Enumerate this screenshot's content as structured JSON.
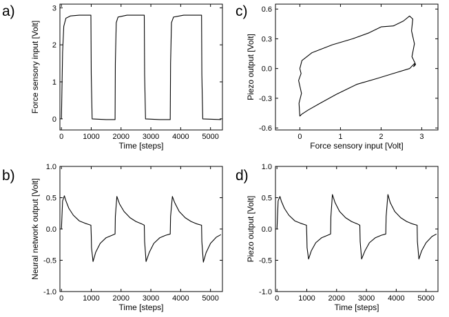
{
  "chart_data": [
    {
      "id": "a",
      "panel_label": "a)",
      "type": "line",
      "xlabel": "Time [steps]",
      "ylabel": "Force sensory input [Volt]",
      "xlim": [
        -50,
        5400
      ],
      "ylim": [
        -0.3,
        3.1
      ],
      "xticks": [
        0,
        1000,
        2000,
        3000,
        4000,
        5000
      ],
      "yticks": [
        0,
        1,
        2,
        3
      ],
      "ytick_labels": [
        "0",
        "1",
        "2",
        "3"
      ],
      "x": [
        0,
        40,
        80,
        150,
        300,
        600,
        990,
        1000,
        1030,
        1500,
        1800,
        1810,
        1840,
        1900,
        2200,
        2780,
        2790,
        2820,
        3300,
        3650,
        3660,
        3690,
        3760,
        4100,
        4700,
        4710,
        4740,
        5350
      ],
      "values": [
        0.0,
        1.8,
        2.5,
        2.72,
        2.78,
        2.8,
        2.8,
        1.2,
        0.0,
        -0.02,
        -0.02,
        1.5,
        2.6,
        2.75,
        2.8,
        2.8,
        1.2,
        0.0,
        -0.02,
        -0.02,
        1.5,
        2.6,
        2.75,
        2.8,
        2.8,
        1.2,
        0.0,
        -0.02
      ]
    },
    {
      "id": "b",
      "panel_label": "b)",
      "type": "line",
      "xlabel": "Time [steps]",
      "ylabel": "Neural network output [Volt]",
      "xlim": [
        -50,
        5400
      ],
      "ylim": [
        -1.0,
        1.0
      ],
      "xticks": [
        0,
        1000,
        2000,
        3000,
        4000,
        5000
      ],
      "yticks": [
        -1.0,
        -0.5,
        0.0,
        0.5,
        1.0
      ],
      "ytick_labels": [
        "-1.0",
        "-0.5",
        "0.0",
        "0.5",
        "1.0"
      ],
      "x": [
        0,
        40,
        100,
        150,
        250,
        400,
        600,
        800,
        990,
        1000,
        1010,
        1060,
        1150,
        1300,
        1500,
        1700,
        1800,
        1810,
        1860,
        1950,
        2100,
        2300,
        2500,
        2700,
        2780,
        2790,
        2840,
        2950,
        3100,
        3300,
        3500,
        3650,
        3660,
        3720,
        3800,
        3950,
        4150,
        4350,
        4550,
        4700,
        4710,
        4760,
        4850,
        5000,
        5200,
        5350
      ],
      "values": [
        0.0,
        0.45,
        0.53,
        0.45,
        0.33,
        0.22,
        0.13,
        0.09,
        0.06,
        -0.1,
        -0.3,
        -0.52,
        -0.37,
        -0.23,
        -0.14,
        -0.1,
        -0.08,
        0.2,
        0.52,
        0.4,
        0.28,
        0.18,
        0.12,
        0.08,
        0.06,
        -0.2,
        -0.52,
        -0.37,
        -0.23,
        -0.14,
        -0.1,
        -0.08,
        0.2,
        0.52,
        0.42,
        0.28,
        0.18,
        0.12,
        0.08,
        0.06,
        -0.2,
        -0.53,
        -0.38,
        -0.23,
        -0.13,
        -0.09
      ]
    },
    {
      "id": "c",
      "panel_label": "c)",
      "type": "line",
      "xlabel": "Force sensory input [Volt]",
      "ylabel": "Piezo output [Volt]",
      "xlim": [
        -0.6,
        3.4
      ],
      "ylim": [
        -0.62,
        0.65
      ],
      "xticks": [
        0,
        1,
        2,
        3
      ],
      "xtick_labels": [
        "0",
        "1",
        "2",
        "3"
      ],
      "yticks": [
        -0.6,
        -0.3,
        0.0,
        0.3,
        0.6
      ],
      "ytick_labels": [
        "-0.6",
        "-0.3",
        "0.0",
        "0.3",
        "0.6"
      ],
      "x": [
        0.0,
        0.05,
        0.3,
        0.8,
        1.3,
        1.7,
        2.0,
        2.3,
        2.55,
        2.7,
        2.78,
        2.75,
        2.82,
        2.76,
        2.84,
        2.8,
        2.85,
        2.82,
        2.7,
        2.3,
        1.9,
        1.4,
        0.9,
        0.5,
        0.2,
        0.05,
        0.0,
        -0.02,
        0.04,
        -0.03,
        0.03,
        0.0
      ],
      "values": [
        0.0,
        0.08,
        0.16,
        0.24,
        0.3,
        0.36,
        0.42,
        0.43,
        0.48,
        0.53,
        0.5,
        0.38,
        0.25,
        0.12,
        0.05,
        0.02,
        0.04,
        0.05,
        0.0,
        -0.05,
        -0.1,
        -0.16,
        -0.26,
        -0.35,
        -0.42,
        -0.46,
        -0.48,
        -0.35,
        -0.25,
        -0.12,
        -0.05,
        0.0
      ]
    },
    {
      "id": "d",
      "panel_label": "d)",
      "type": "line",
      "xlabel": "Time [steps]",
      "ylabel": "Piezo output [Volt]",
      "xlim": [
        -50,
        5400
      ],
      "ylim": [
        -1.0,
        1.0
      ],
      "xticks": [
        0,
        1000,
        2000,
        3000,
        4000,
        5000
      ],
      "yticks": [
        -1.0,
        -0.5,
        0.0,
        0.5,
        1.0
      ],
      "ytick_labels": [
        "-1.0",
        "-0.5",
        "0.0",
        "0.5",
        "1.0"
      ],
      "x": [
        0,
        40,
        100,
        150,
        250,
        400,
        600,
        800,
        990,
        1000,
        1010,
        1060,
        1150,
        1300,
        1500,
        1700,
        1800,
        1810,
        1860,
        1950,
        2100,
        2300,
        2500,
        2700,
        2780,
        2790,
        2840,
        2950,
        3100,
        3300,
        3500,
        3650,
        3660,
        3720,
        3800,
        3950,
        4150,
        4350,
        4550,
        4700,
        4710,
        4760,
        4850,
        5000,
        5200,
        5350
      ],
      "values": [
        0.0,
        0.45,
        0.52,
        0.44,
        0.33,
        0.22,
        0.13,
        0.09,
        0.06,
        -0.1,
        -0.3,
        -0.48,
        -0.35,
        -0.22,
        -0.14,
        -0.1,
        -0.08,
        0.2,
        0.55,
        0.42,
        0.28,
        0.18,
        0.12,
        0.08,
        0.06,
        -0.2,
        -0.48,
        -0.35,
        -0.22,
        -0.14,
        -0.1,
        -0.08,
        0.2,
        0.55,
        0.42,
        0.28,
        0.18,
        0.12,
        0.08,
        0.06,
        -0.2,
        -0.48,
        -0.35,
        -0.22,
        -0.12,
        -0.08
      ]
    }
  ]
}
